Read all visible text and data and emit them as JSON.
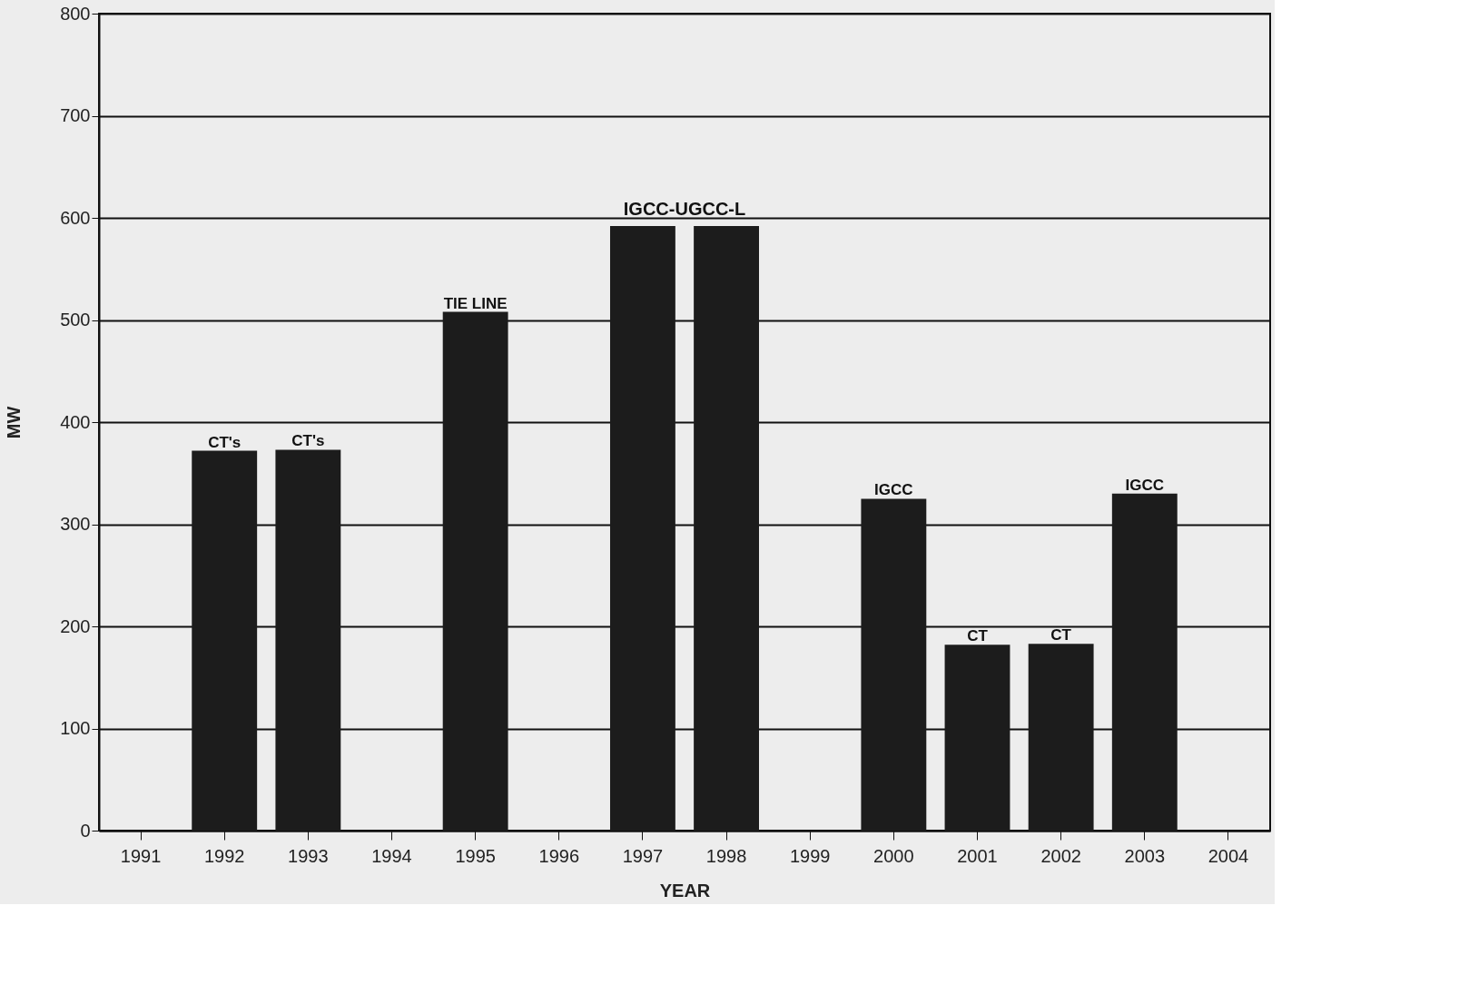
{
  "chart_data": {
    "type": "bar",
    "xlabel": "YEAR",
    "ylabel": "MW",
    "categories": [
      "1991",
      "1992",
      "1993",
      "1994",
      "1995",
      "1996",
      "1997",
      "1998",
      "1999",
      "2000",
      "2001",
      "2002",
      "2003",
      "2004"
    ],
    "values": [
      null,
      372,
      373,
      null,
      508,
      null,
      592,
      592,
      null,
      325,
      182,
      183,
      330,
      null
    ],
    "value_labels": [
      null,
      "CT's",
      "CT's",
      null,
      "TIE LINE",
      null,
      null,
      null,
      null,
      "IGCC",
      "CT",
      "CT",
      "IGCC",
      null
    ],
    "annotations": [
      {
        "text": "IGCC-UGCC-L",
        "x": "1997",
        "y": 592
      }
    ],
    "color": "#1c1c1c",
    "ylim": [
      0,
      800
    ],
    "yticks": [
      0,
      100,
      200,
      300,
      400,
      500,
      600,
      700,
      800
    ],
    "grid": "y"
  }
}
